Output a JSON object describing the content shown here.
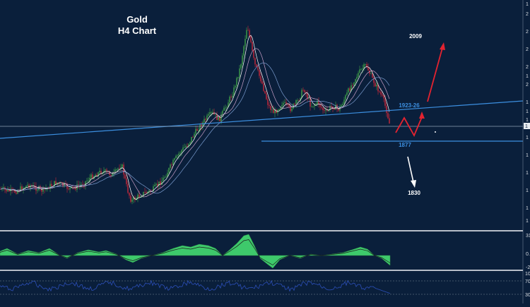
{
  "chart_data": {
    "type": "candlestick",
    "title": "Gold",
    "subtitle": "H4 Chart",
    "colors": {
      "background": "#0a1f3b",
      "bull": "#3fa24a",
      "bear": "#c9283a",
      "trendline": "#3c8fe0",
      "forecast_up": "#e32330",
      "forecast_down": "#ffffff",
      "macd_fill": "#3ec96b",
      "rsi_line": "#2c4fb8",
      "panel_divider": "#b8bec8",
      "price_marker": "#8fa2b7"
    },
    "annotations": {
      "target_up": "2009",
      "resistance": "1923-26",
      "support": "1877",
      "target_down": "1830"
    },
    "current_price_label": "1",
    "rsi_levels": [
      "70",
      "30"
    ],
    "rsi_top_label": "10",
    "macd_labels": [
      "31",
      "0.",
      "-2"
    ],
    "y_tick_labels": [
      "2",
      "2",
      "2",
      "2",
      "2",
      "1",
      "1",
      "1",
      "1",
      "1",
      "1",
      "1",
      "1",
      "1",
      "1",
      "1"
    ],
    "grid": false,
    "legend": "none"
  }
}
